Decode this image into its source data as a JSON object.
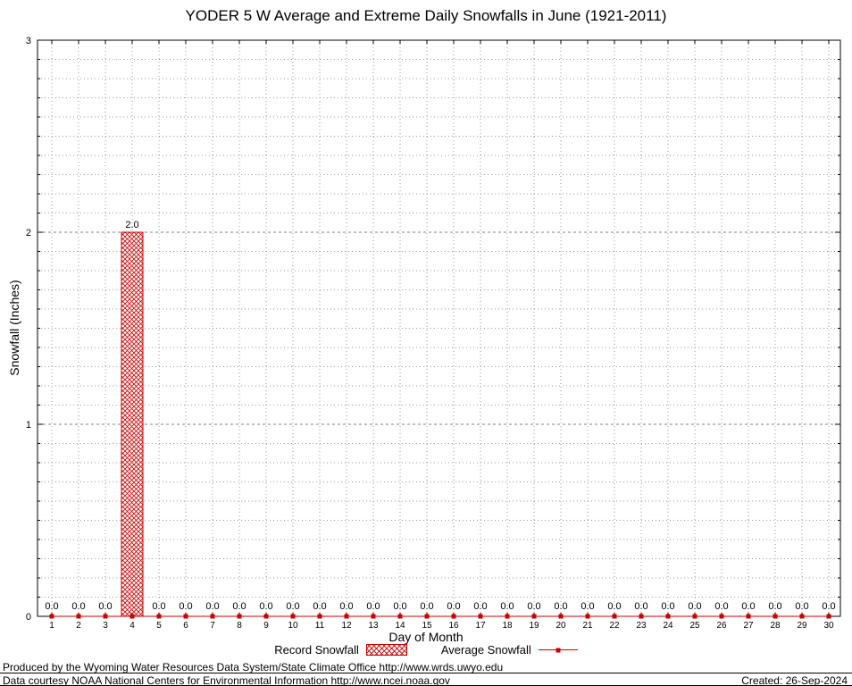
{
  "chart_data": {
    "type": "bar",
    "title": "YODER 5 W Average and Extreme Daily Snowfalls in June (1921-2011)",
    "xlabel": "Day of Month",
    "ylabel": "Snowfall (Inches)",
    "ylim": [
      0,
      3
    ],
    "y_major_ticks": [
      0,
      1,
      2,
      3
    ],
    "y_minor_step": 0.1,
    "grid": true,
    "legend_position": "bottom",
    "categories": [
      1,
      2,
      3,
      4,
      5,
      6,
      7,
      8,
      9,
      10,
      11,
      12,
      13,
      14,
      15,
      16,
      17,
      18,
      19,
      20,
      21,
      22,
      23,
      24,
      25,
      26,
      27,
      28,
      29,
      30
    ],
    "series": [
      {
        "name": "Record Snowfall",
        "type": "bar",
        "values": [
          0.0,
          0.0,
          0.0,
          2.0,
          0.0,
          0.0,
          0.0,
          0.0,
          0.0,
          0.0,
          0.0,
          0.0,
          0.0,
          0.0,
          0.0,
          0.0,
          0.0,
          0.0,
          0.0,
          0.0,
          0.0,
          0.0,
          0.0,
          0.0,
          0.0,
          0.0,
          0.0,
          0.0,
          0.0,
          0.0
        ]
      },
      {
        "name": "Average Snowfall",
        "type": "line",
        "values": [
          0.0,
          0.0,
          0.0,
          0.0,
          0.0,
          0.0,
          0.0,
          0.0,
          0.0,
          0.0,
          0.0,
          0.0,
          0.0,
          0.0,
          0.0,
          0.0,
          0.0,
          0.0,
          0.0,
          0.0,
          0.0,
          0.0,
          0.0,
          0.0,
          0.0,
          0.0,
          0.0,
          0.0,
          0.0,
          0.0
        ]
      }
    ],
    "bar_value_labels": [
      "0.0",
      "0.0",
      "0.0",
      "2.0",
      "0.0",
      "0.0",
      "0.0",
      "0.0",
      "0.0",
      "0.0",
      "0.0",
      "0.0",
      "0.0",
      "0.0",
      "0.0",
      "0.0",
      "0.0",
      "0.0",
      "0.0",
      "0.0",
      "0.0",
      "0.0",
      "0.0",
      "0.0",
      "0.0",
      "0.0",
      "0.0",
      "0.0",
      "0.0",
      "0.0"
    ],
    "colors": {
      "record": "#cc0000",
      "average": "#cc0000",
      "grid_minor": "#9a9a9a",
      "grid_major": "#808080",
      "frame": "#000000"
    }
  },
  "footer": {
    "line1": "Produced by the Wyoming Water Resources Data System/State Climate Office http://www.wrds.uwyo.edu",
    "line2": "Data courtesy NOAA National Centers for Environmental Information http://www.ncei.noaa.gov",
    "created": "Created: 26-Sep-2024"
  }
}
